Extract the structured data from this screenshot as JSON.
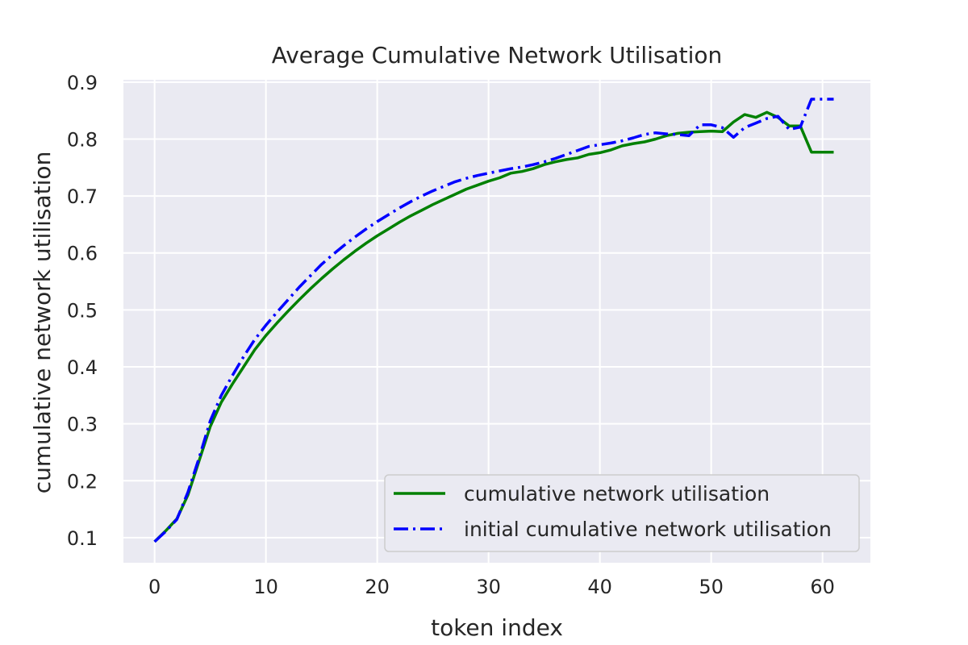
{
  "chart_data": {
    "type": "line",
    "title": "Average Cumulative Network Utilisation",
    "xlabel": "token index",
    "ylabel": "cumulative network utilisation",
    "xlim": [
      -2.8,
      64.3
    ],
    "ylim": [
      0.056,
      0.904
    ],
    "xticks": [
      0,
      10,
      20,
      30,
      40,
      50,
      60
    ],
    "yticks": [
      0.1,
      0.2,
      0.3,
      0.4,
      0.5,
      0.6,
      0.7,
      0.8,
      0.9
    ],
    "xtick_labels": [
      "0",
      "10",
      "20",
      "30",
      "40",
      "50",
      "60"
    ],
    "ytick_labels": [
      "0.1",
      "0.2",
      "0.3",
      "0.4",
      "0.5",
      "0.6",
      "0.7",
      "0.8",
      "0.9"
    ],
    "grid": true,
    "background": "#eaeaf2",
    "legend_position": "lower-right",
    "x": [
      0,
      1,
      2,
      3,
      4,
      5,
      6,
      7,
      8,
      9,
      10,
      11,
      12,
      13,
      14,
      15,
      16,
      17,
      18,
      19,
      20,
      21,
      22,
      23,
      24,
      25,
      26,
      27,
      28,
      29,
      30,
      31,
      32,
      33,
      34,
      35,
      36,
      37,
      38,
      39,
      40,
      41,
      42,
      43,
      44,
      45,
      46,
      47,
      48,
      49,
      50,
      51,
      52,
      53,
      54,
      55,
      56,
      57,
      58,
      59,
      60,
      61
    ],
    "series": [
      {
        "name": "cumulative network utilisation",
        "color": "#008000",
        "style": "solid",
        "values": [
          0.093,
          0.112,
          0.133,
          0.175,
          0.235,
          0.295,
          0.338,
          0.37,
          0.4,
          0.43,
          0.455,
          0.477,
          0.498,
          0.518,
          0.537,
          0.555,
          0.572,
          0.588,
          0.603,
          0.617,
          0.63,
          0.642,
          0.654,
          0.665,
          0.675,
          0.685,
          0.694,
          0.703,
          0.712,
          0.719,
          0.726,
          0.732,
          0.74,
          0.743,
          0.748,
          0.755,
          0.76,
          0.764,
          0.767,
          0.773,
          0.776,
          0.781,
          0.788,
          0.792,
          0.795,
          0.8,
          0.806,
          0.81,
          0.812,
          0.813,
          0.814,
          0.813,
          0.83,
          0.843,
          0.838,
          0.847,
          0.838,
          0.823,
          0.823,
          0.777,
          0.777,
          0.777
        ]
      },
      {
        "name": "initial cumulative network utilisation",
        "color": "#0000ff",
        "style": "dashdot",
        "values": [
          0.093,
          0.111,
          0.132,
          0.18,
          0.24,
          0.305,
          0.35,
          0.385,
          0.418,
          0.448,
          0.473,
          0.496,
          0.518,
          0.54,
          0.56,
          0.58,
          0.597,
          0.613,
          0.628,
          0.642,
          0.655,
          0.667,
          0.679,
          0.69,
          0.7,
          0.709,
          0.717,
          0.725,
          0.731,
          0.736,
          0.74,
          0.744,
          0.748,
          0.751,
          0.755,
          0.76,
          0.766,
          0.773,
          0.78,
          0.787,
          0.79,
          0.793,
          0.797,
          0.802,
          0.808,
          0.811,
          0.809,
          0.808,
          0.806,
          0.825,
          0.825,
          0.82,
          0.803,
          0.82,
          0.828,
          0.836,
          0.84,
          0.817,
          0.821,
          0.87,
          0.87,
          0.87
        ]
      }
    ]
  }
}
